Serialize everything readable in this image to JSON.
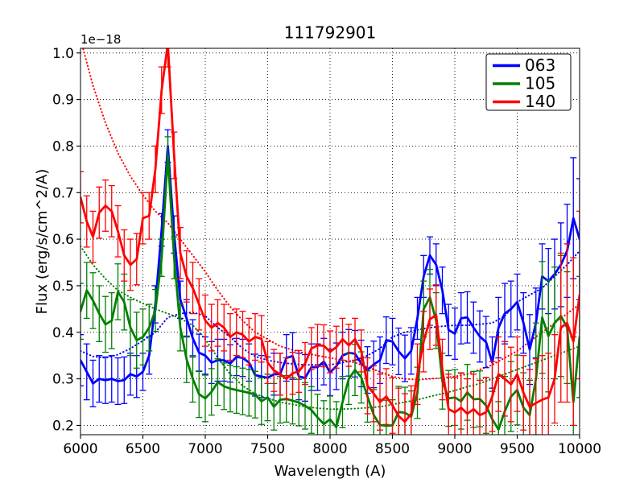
{
  "chart_data": {
    "type": "line",
    "title": "111792901",
    "xlabel": "Wavelength (A)",
    "ylabel": "Flux (erg/s/cm^2/A)",
    "y_offset_label": "1e−18",
    "xlim": [
      6000,
      10000
    ],
    "ylim": [
      0.18,
      1.01
    ],
    "xticks": [
      6000,
      6500,
      7000,
      7500,
      8000,
      8500,
      9000,
      9500,
      10000
    ],
    "yticks": [
      0.2,
      0.3,
      0.4,
      0.5,
      0.6,
      0.7,
      0.8,
      0.9,
      1.0
    ],
    "grid": true,
    "grid_style": "dotted",
    "legend_position": "upper right",
    "background": "#ffffff",
    "axis_color": "#000000",
    "series": [
      {
        "name": "063",
        "color": "#0000ff",
        "style": "solid",
        "show_in_legend": true,
        "has_error_bars": true,
        "x_start": 6000,
        "x_step": 50,
        "values": [
          0.34,
          0.315,
          0.29,
          0.3,
          0.297,
          0.3,
          0.295,
          0.297,
          0.31,
          0.305,
          0.315,
          0.35,
          0.46,
          0.62,
          0.8,
          0.61,
          0.47,
          0.43,
          0.387,
          0.356,
          0.35,
          0.335,
          0.34,
          0.34,
          0.333,
          0.347,
          0.345,
          0.335,
          0.308,
          0.305,
          0.302,
          0.31,
          0.31,
          0.345,
          0.349,
          0.305,
          0.302,
          0.325,
          0.325,
          0.337,
          0.314,
          0.327,
          0.35,
          0.356,
          0.354,
          0.333,
          0.319,
          0.331,
          0.34,
          0.383,
          0.38,
          0.359,
          0.344,
          0.36,
          0.43,
          0.52,
          0.565,
          0.545,
          0.49,
          0.405,
          0.397,
          0.43,
          0.432,
          0.41,
          0.391,
          0.379,
          0.335,
          0.41,
          0.44,
          0.45,
          0.465,
          0.42,
          0.363,
          0.42,
          0.52,
          0.51,
          0.525,
          0.545,
          0.575,
          0.645,
          0.6
        ],
        "errors": [
          0.055,
          0.06,
          0.05,
          0.05,
          0.05,
          0.05,
          0.05,
          0.05,
          0.045,
          0.045,
          0.04,
          0.04,
          0.04,
          0.035,
          0.035,
          0.04,
          0.04,
          0.04,
          0.04,
          0.04,
          0.04,
          0.045,
          0.045,
          0.045,
          0.04,
          0.04,
          0.04,
          0.04,
          0.045,
          0.045,
          0.045,
          0.045,
          0.045,
          0.05,
          0.05,
          0.05,
          0.05,
          0.05,
          0.05,
          0.05,
          0.05,
          0.05,
          0.05,
          0.05,
          0.05,
          0.05,
          0.05,
          0.05,
          0.05,
          0.05,
          0.05,
          0.05,
          0.05,
          0.05,
          0.045,
          0.045,
          0.04,
          0.045,
          0.05,
          0.055,
          0.055,
          0.055,
          0.055,
          0.055,
          0.055,
          0.055,
          0.055,
          0.065,
          0.065,
          0.06,
          0.06,
          0.065,
          0.075,
          0.075,
          0.07,
          0.07,
          0.075,
          0.09,
          0.1,
          0.13,
          0.13
        ]
      },
      {
        "name": "105",
        "color": "#008000",
        "style": "solid",
        "show_in_legend": true,
        "has_error_bars": true,
        "x_start": 6000,
        "x_step": 50,
        "values": [
          0.445,
          0.49,
          0.468,
          0.44,
          0.417,
          0.425,
          0.487,
          0.465,
          0.41,
          0.383,
          0.39,
          0.41,
          0.447,
          0.56,
          0.78,
          0.56,
          0.41,
          0.342,
          0.3,
          0.267,
          0.258,
          0.272,
          0.293,
          0.284,
          0.279,
          0.276,
          0.273,
          0.27,
          0.266,
          0.252,
          0.26,
          0.24,
          0.255,
          0.257,
          0.253,
          0.249,
          0.242,
          0.233,
          0.217,
          0.203,
          0.213,
          0.196,
          0.25,
          0.3,
          0.319,
          0.303,
          0.262,
          0.222,
          0.201,
          0.199,
          0.2,
          0.229,
          0.227,
          0.219,
          0.27,
          0.45,
          0.475,
          0.425,
          0.295,
          0.258,
          0.26,
          0.252,
          0.271,
          0.256,
          0.257,
          0.243,
          0.213,
          0.191,
          0.23,
          0.262,
          0.276,
          0.238,
          0.222,
          0.3,
          0.432,
          0.392,
          0.42,
          0.435,
          0.41,
          0.25,
          0.39
        ],
        "errors": [
          0.06,
          0.06,
          0.06,
          0.06,
          0.06,
          0.06,
          0.06,
          0.06,
          0.06,
          0.06,
          0.06,
          0.05,
          0.045,
          0.04,
          0.04,
          0.045,
          0.05,
          0.05,
          0.05,
          0.05,
          0.05,
          0.05,
          0.05,
          0.05,
          0.05,
          0.05,
          0.05,
          0.05,
          0.05,
          0.05,
          0.05,
          0.05,
          0.05,
          0.05,
          0.05,
          0.05,
          0.05,
          0.05,
          0.05,
          0.05,
          0.05,
          0.055,
          0.055,
          0.055,
          0.055,
          0.055,
          0.055,
          0.055,
          0.055,
          0.055,
          0.055,
          0.055,
          0.055,
          0.055,
          0.055,
          0.06,
          0.06,
          0.06,
          0.06,
          0.06,
          0.06,
          0.06,
          0.06,
          0.06,
          0.06,
          0.06,
          0.06,
          0.06,
          0.075,
          0.075,
          0.075,
          0.075,
          0.075,
          0.12,
          0.12,
          0.12,
          0.12,
          0.13,
          0.12,
          0.14,
          0.13
        ]
      },
      {
        "name": "140",
        "color": "#ff0000",
        "style": "solid",
        "show_in_legend": true,
        "has_error_bars": true,
        "x_start": 6000,
        "x_step": 50,
        "values": [
          0.69,
          0.638,
          0.605,
          0.657,
          0.672,
          0.66,
          0.617,
          0.565,
          0.545,
          0.557,
          0.645,
          0.65,
          0.75,
          0.92,
          1.02,
          0.78,
          0.57,
          0.52,
          0.495,
          0.46,
          0.425,
          0.41,
          0.42,
          0.41,
          0.39,
          0.4,
          0.395,
          0.38,
          0.39,
          0.386,
          0.335,
          0.318,
          0.31,
          0.3,
          0.312,
          0.316,
          0.333,
          0.365,
          0.372,
          0.371,
          0.358,
          0.368,
          0.385,
          0.372,
          0.385,
          0.36,
          0.285,
          0.268,
          0.25,
          0.262,
          0.243,
          0.22,
          0.208,
          0.225,
          0.31,
          0.38,
          0.428,
          0.437,
          0.32,
          0.235,
          0.228,
          0.238,
          0.225,
          0.235,
          0.222,
          0.228,
          0.262,
          0.31,
          0.3,
          0.288,
          0.31,
          0.27,
          0.24,
          0.248,
          0.255,
          0.26,
          0.3,
          0.41,
          0.42,
          0.38,
          0.48
        ],
        "errors": [
          0.055,
          0.055,
          0.055,
          0.055,
          0.055,
          0.055,
          0.055,
          0.055,
          0.055,
          0.055,
          0.055,
          0.05,
          0.05,
          0.05,
          0.05,
          0.05,
          0.055,
          0.055,
          0.055,
          0.055,
          0.055,
          0.05,
          0.05,
          0.05,
          0.05,
          0.05,
          0.05,
          0.05,
          0.05,
          0.05,
          0.045,
          0.045,
          0.045,
          0.045,
          0.045,
          0.045,
          0.045,
          0.045,
          0.045,
          0.045,
          0.045,
          0.045,
          0.045,
          0.045,
          0.045,
          0.045,
          0.06,
          0.06,
          0.06,
          0.06,
          0.06,
          0.06,
          0.06,
          0.06,
          0.065,
          0.065,
          0.065,
          0.065,
          0.065,
          0.075,
          0.075,
          0.075,
          0.075,
          0.075,
          0.075,
          0.075,
          0.075,
          0.08,
          0.08,
          0.08,
          0.08,
          0.08,
          0.08,
          0.095,
          0.095,
          0.095,
          0.095,
          0.16,
          0.17,
          0.18,
          0.18
        ]
      },
      {
        "name": "063-template",
        "color": "#0000ff",
        "style": "dotted",
        "show_in_legend": false,
        "has_error_bars": false,
        "x_start": 6000,
        "x_step": 100,
        "values": [
          0.36,
          0.348,
          0.345,
          0.352,
          0.365,
          0.382,
          0.4,
          0.432,
          0.44,
          0.443,
          0.435,
          0.41,
          0.39,
          0.365,
          0.348,
          0.34,
          0.335,
          0.332,
          0.33,
          0.33,
          0.33,
          0.335,
          0.34,
          0.35,
          0.365,
          0.39,
          0.4,
          0.405,
          0.41,
          0.413,
          0.415,
          0.415,
          0.417,
          0.42,
          0.435,
          0.465,
          0.48,
          0.495,
          0.52,
          0.545,
          0.575
        ]
      },
      {
        "name": "105-template",
        "color": "#008000",
        "style": "dotted",
        "show_in_legend": false,
        "has_error_bars": false,
        "x_start": 6000,
        "x_step": 100,
        "values": [
          0.585,
          0.545,
          0.515,
          0.49,
          0.475,
          0.462,
          0.45,
          0.44,
          0.43,
          0.415,
          0.385,
          0.345,
          0.31,
          0.285,
          0.268,
          0.258,
          0.25,
          0.245,
          0.24,
          0.237,
          0.235,
          0.235,
          0.236,
          0.238,
          0.24,
          0.245,
          0.25,
          0.255,
          0.262,
          0.268,
          0.275,
          0.283,
          0.29,
          0.3,
          0.31,
          0.32,
          0.33,
          0.34,
          0.35,
          0.36,
          0.37
        ]
      },
      {
        "name": "140-template",
        "color": "#ff0000",
        "style": "dotted",
        "show_in_legend": false,
        "has_error_bars": false,
        "x_start": 6000,
        "x_step": 100,
        "values": [
          1.03,
          0.93,
          0.85,
          0.785,
          0.735,
          0.695,
          0.66,
          0.635,
          0.6,
          0.565,
          0.53,
          0.49,
          0.455,
          0.425,
          0.4,
          0.385,
          0.37,
          0.362,
          0.355,
          0.35,
          0.345,
          0.34,
          0.335,
          0.325,
          0.315,
          0.305,
          0.3,
          0.298,
          0.3,
          0.302,
          0.305,
          0.31,
          0.32,
          0.33,
          0.345,
          0.36,
          0.38,
          0.4,
          0.42,
          0.44,
          0.46
        ]
      }
    ]
  }
}
